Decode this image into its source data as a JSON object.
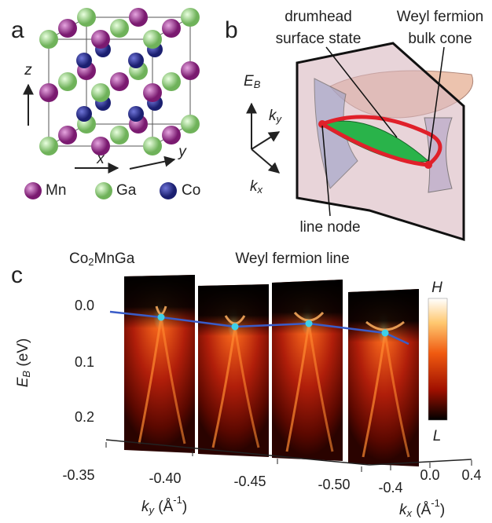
{
  "panel_a": {
    "label": "a",
    "axes": {
      "z": "z",
      "x": "x",
      "y": "y"
    },
    "legend": [
      {
        "name": "Mn",
        "color": "#9b2a8f"
      },
      {
        "name": "Ga",
        "color": "#9fd48a"
      },
      {
        "name": "Co",
        "color": "#2b2f8f"
      }
    ]
  },
  "panel_b": {
    "label": "b",
    "drumhead": [
      "drumhead",
      "surface state"
    ],
    "weyl": [
      "Weyl fermion",
      "bulk cone"
    ],
    "energy": {
      "main": "E",
      "sub": "B"
    },
    "ky": {
      "main": "k",
      "sub": "y"
    },
    "kx": {
      "main": "k",
      "sub": "x"
    },
    "line_node": "line node"
  },
  "panel_c": {
    "label": "c",
    "compound": [
      "Co",
      "2",
      "MnGa"
    ],
    "title": "Weyl fermion line",
    "y_axis": {
      "main": "E",
      "sub": "B",
      "unit": " (eV)"
    },
    "yticks": [
      "0.0",
      "0.1",
      "0.2"
    ],
    "ky_ticks": [
      "-0.35",
      "-0.40",
      "-0.45",
      "-0.50"
    ],
    "kx_ticks": [
      "-0.4",
      "0.0",
      "0.4"
    ],
    "ky_label": [
      "k",
      "y",
      " (Å",
      "-1",
      ")"
    ],
    "kx_label": [
      "k",
      "x",
      " (Å",
      "-1",
      ")"
    ],
    "colorbar": {
      "high": "H",
      "low": "L"
    }
  }
}
